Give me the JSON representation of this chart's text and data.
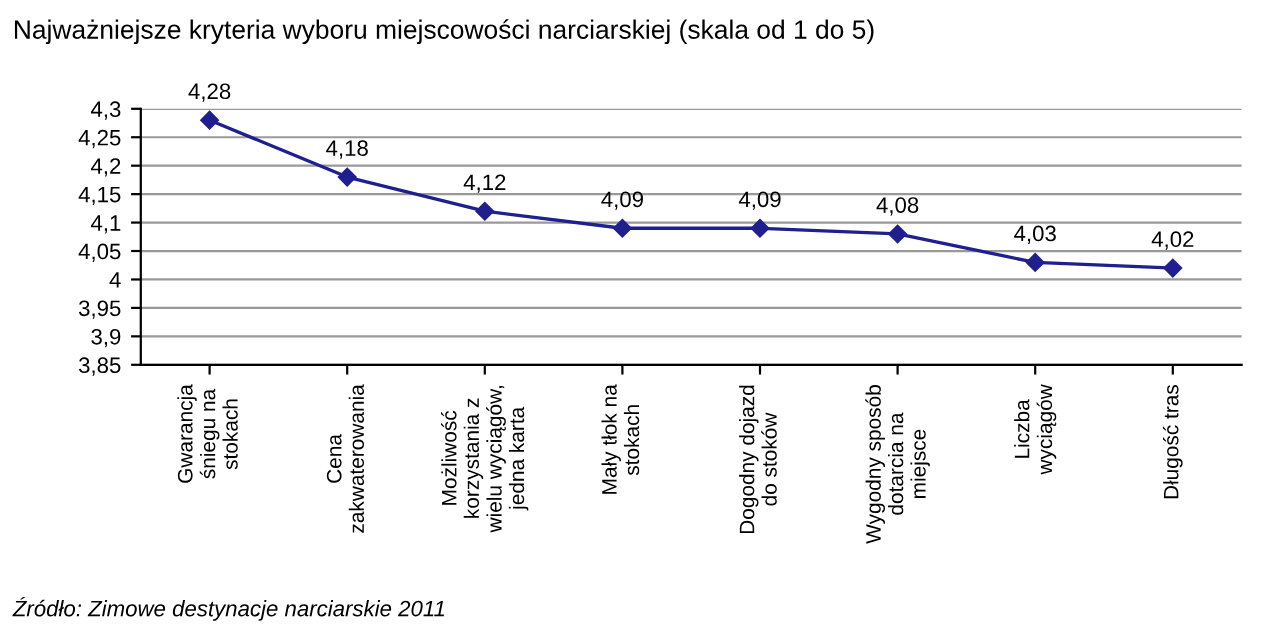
{
  "chart_data": {
    "type": "line",
    "title": "Najważniejsze kryteria wyboru miejscowości narciarskiej (skala od 1 do 5)",
    "categories": [
      "Gwarancja\nśniegu na\nstokach",
      "Cena\nzakwaterowania",
      "Możliwość\nkorzystania z\nwielu wyciągów,\njedna karta",
      "Mały tłok na\nstokach",
      "Dogodny dojazd\ndo stoków",
      "Wygodny sposób\ndotarcia na\nmiejsce",
      "Liczba\nwyciągów",
      "Długość tras"
    ],
    "series": [
      {
        "color": "#1f1f8f",
        "values": [
          4.28,
          4.18,
          4.12,
          4.09,
          4.09,
          4.08,
          4.03,
          4.02
        ]
      }
    ],
    "value_labels": [
      "4,28",
      "4,18",
      "4,12",
      "4,09",
      "4,09",
      "4,08",
      "4,03",
      "4,02"
    ],
    "ylim": [
      3.85,
      4.3
    ],
    "yticks": [
      {
        "value": 3.85,
        "label": "3,85"
      },
      {
        "value": 3.9,
        "label": "3,9"
      },
      {
        "value": 3.95,
        "label": "3,95"
      },
      {
        "value": 4,
        "label": "4"
      },
      {
        "value": 4.05,
        "label": "4,05"
      },
      {
        "value": 4.1,
        "label": "4,1"
      },
      {
        "value": 4.15,
        "label": "4,15"
      },
      {
        "value": 4.2,
        "label": "4,2"
      },
      {
        "value": 4.25,
        "label": "4,25"
      },
      {
        "value": 4.3,
        "label": "4,3"
      }
    ],
    "grid": "y",
    "marker": "diamond",
    "line_style": "solid",
    "legend": false,
    "annotations": [
      "Źródło: Zimowe destynacje narciarskie 2011"
    ]
  }
}
